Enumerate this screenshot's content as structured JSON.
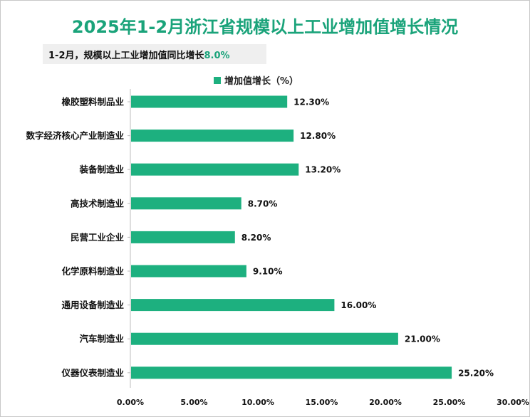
{
  "title": "2025年1-2月浙江省规模以上工业增加值增长情况",
  "subtitle": {
    "label": "1-2月，规模以上工业增加值同比增长",
    "value": "8.0%"
  },
  "colors": {
    "title": "#1aa37a",
    "bar": "#1db07f",
    "highlight": "#1aa37a"
  },
  "chart_data": {
    "type": "bar",
    "orientation": "horizontal",
    "title": "2025年1-2月浙江省规模以上工业增加值增长情况",
    "legend": "top-center",
    "series": [
      {
        "name": "增加值增长（%）",
        "values": [
          12.3,
          12.8,
          13.2,
          8.7,
          8.2,
          9.1,
          16.0,
          21.0,
          25.2
        ]
      }
    ],
    "categories": [
      "橡胶塑料制品业",
      "数字经济核心产业制造业",
      "装备制造业",
      "高技术制造业",
      "民营工业企业",
      "化学原料制造业",
      "通用设备制造业",
      "汽车制造业",
      "仪器仪表制造业"
    ],
    "data_labels": [
      "12.30%",
      "12.80%",
      "13.20%",
      "8.70%",
      "8.20%",
      "9.10%",
      "16.00%",
      "21.00%",
      "25.20%"
    ],
    "xlim": [
      0,
      30
    ],
    "xticks": [
      "0.00%",
      "5.00%",
      "10.00%",
      "15.00%",
      "20.00%",
      "25.00%",
      "30.00%"
    ],
    "xlabel": "",
    "ylabel": "",
    "grid": false
  }
}
